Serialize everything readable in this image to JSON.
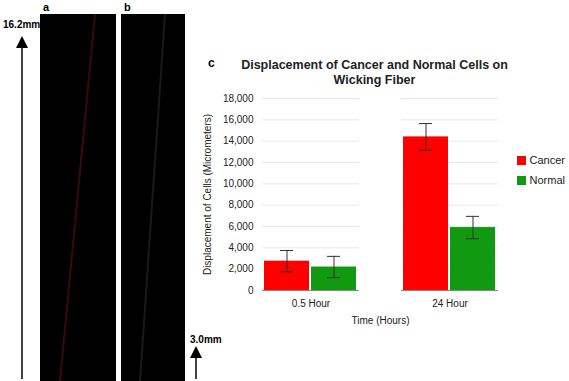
{
  "panel_labels": [
    "a",
    "b",
    "c"
  ],
  "scale_labels": [
    "16.2mm",
    "3.0mm"
  ],
  "chart_data": {
    "type": "bar",
    "title": "Displacement of Cancer and Normal Cells on Wicking Fiber",
    "x_label": "Time (Hours)",
    "y_label": "Displacement of Cells (Micrometers)",
    "categories": [
      "0.5 Hour",
      "24 Hour"
    ],
    "series": [
      {
        "name": "Cancer",
        "color": "#ff0000",
        "values": [
          2750,
          14400
        ],
        "errors": [
          1000,
          1250
        ]
      },
      {
        "name": "Normal",
        "color": "#119a11",
        "values": [
          2200,
          5900
        ],
        "errors": [
          1000,
          1050
        ]
      }
    ],
    "ylim": [
      0,
      18000
    ],
    "yticks": [
      0,
      2000,
      4000,
      6000,
      8000,
      10000,
      12000,
      14000,
      16000,
      18000
    ],
    "grid": true,
    "legend": "right"
  }
}
